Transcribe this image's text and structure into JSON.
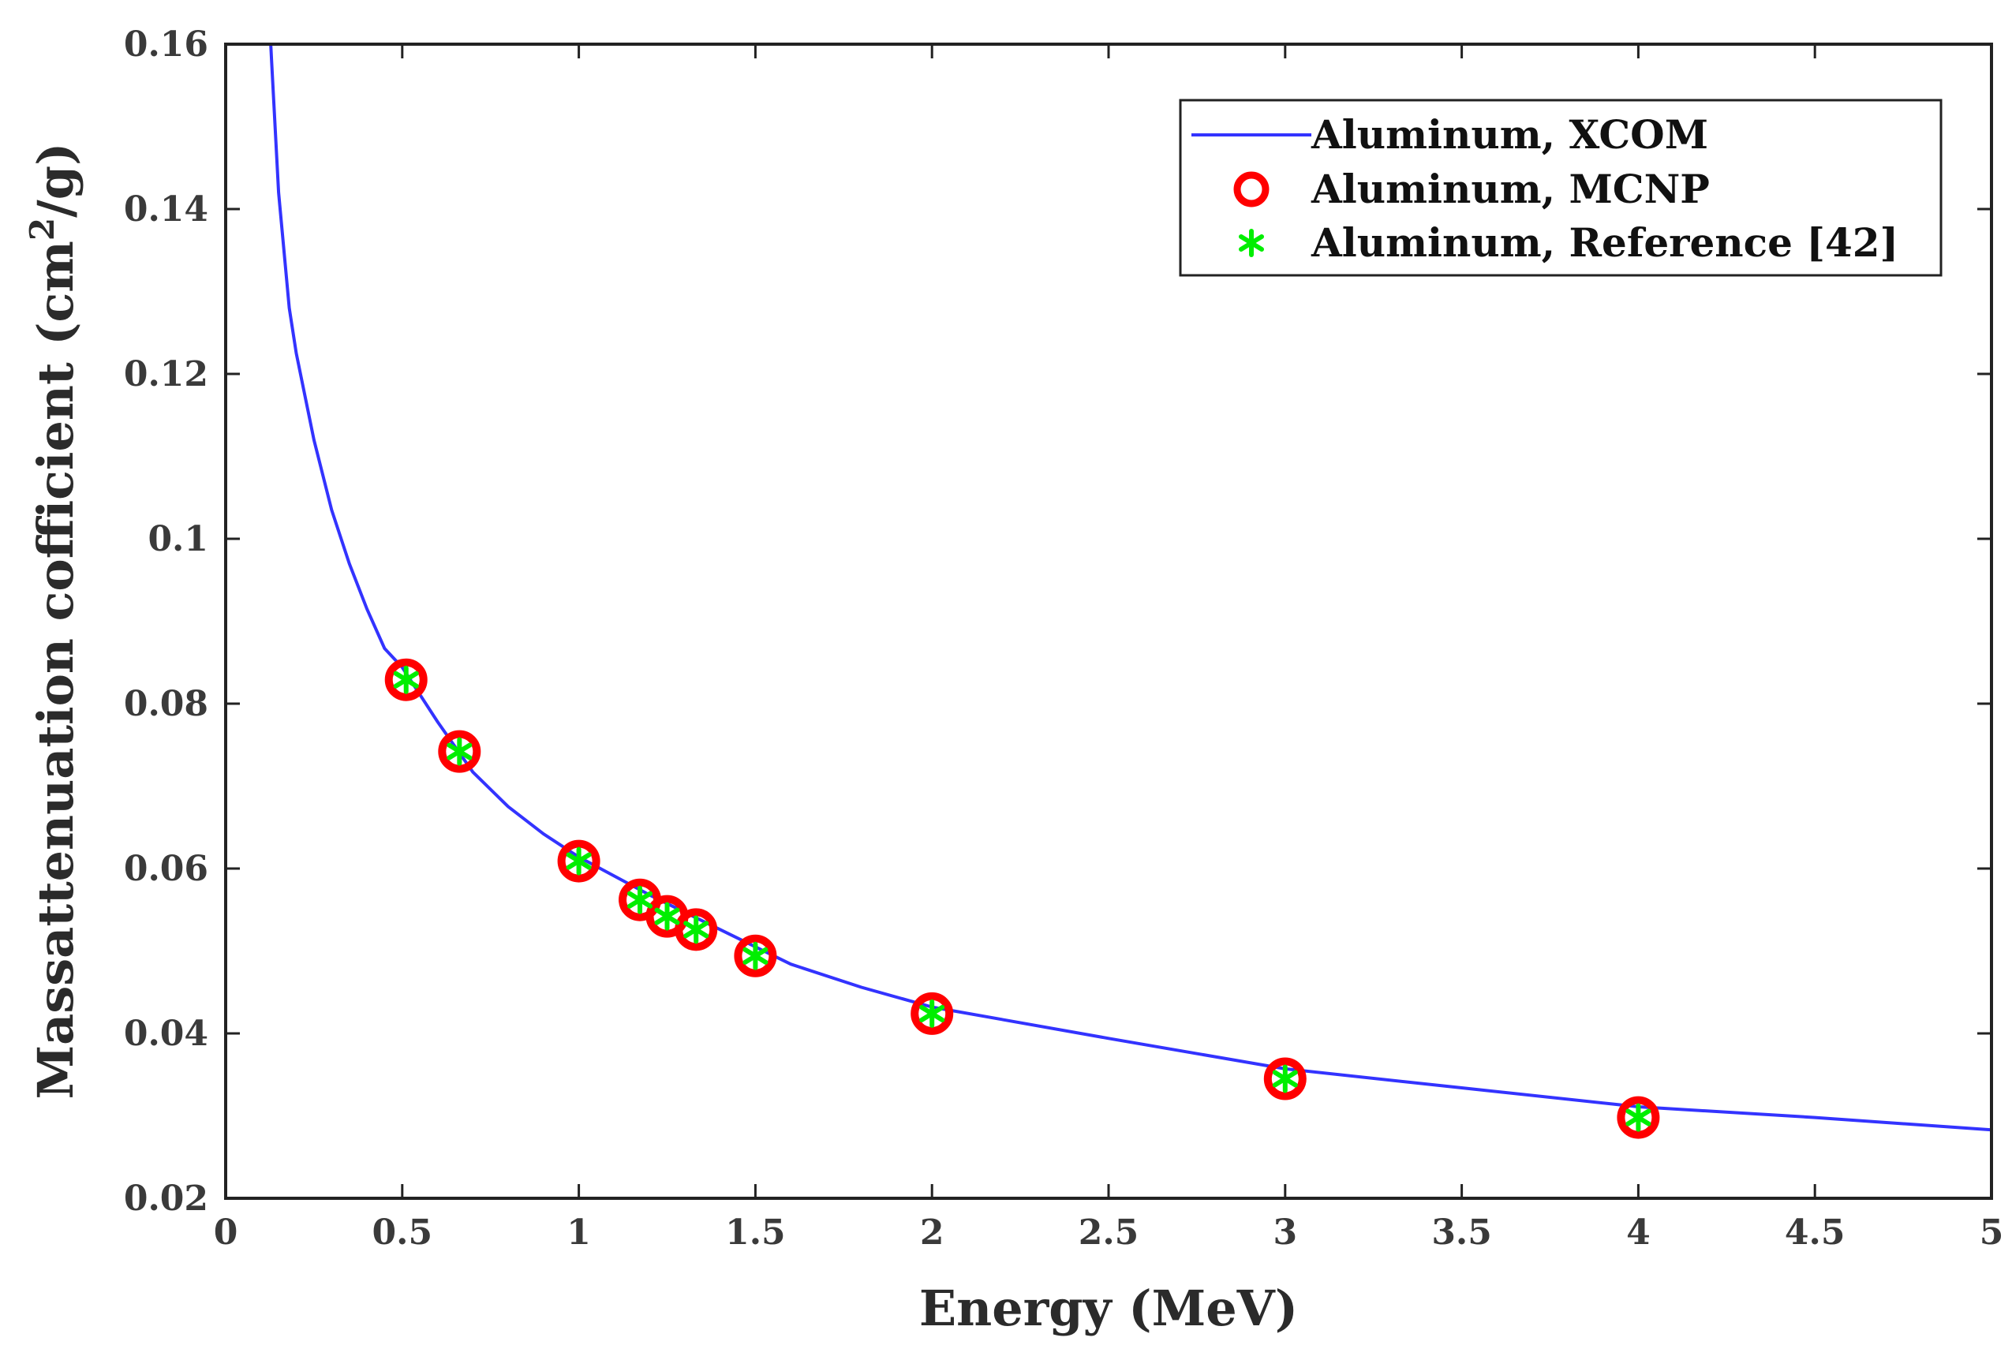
{
  "chart_data": {
    "type": "line",
    "xlabel": "Energy (MeV)",
    "ylabel_main": "Massattenuation cofficient (cm",
    "ylabel_sup": "2",
    "ylabel_end": "/g)",
    "xlim": [
      0,
      5
    ],
    "ylim": [
      0.02,
      0.16
    ],
    "x_ticks": [
      0,
      0.5,
      1,
      1.5,
      2,
      2.5,
      3,
      3.5,
      4,
      4.5,
      5
    ],
    "x_tick_labels": [
      "0",
      "0.5",
      "1",
      "1.5",
      "2",
      "2.5",
      "3",
      "3.5",
      "4",
      "4.5",
      "5"
    ],
    "y_ticks": [
      0.02,
      0.04,
      0.06,
      0.08,
      0.1,
      0.12,
      0.14,
      0.16
    ],
    "y_tick_labels": [
      "0.02",
      "0.04",
      "0.06",
      "0.08",
      "0.1",
      "0.12",
      "0.14",
      "0.16"
    ],
    "grid": false,
    "legend_position": "top-right",
    "series": [
      {
        "name": "Aluminum, XCOM",
        "kind": "line",
        "color": "#3333ff",
        "x": [
          0.11,
          0.13,
          0.15,
          0.18,
          0.2,
          0.25,
          0.3,
          0.35,
          0.4,
          0.45,
          0.5,
          0.6,
          0.7,
          0.8,
          0.9,
          1.0,
          1.2,
          1.4,
          1.6,
          1.8,
          2.0,
          2.5,
          3.0,
          3.5,
          4.0,
          4.5,
          5.0
        ],
        "y": [
          0.175,
          0.158,
          0.142,
          0.128,
          0.1225,
          0.112,
          0.1035,
          0.097,
          0.0915,
          0.0867,
          0.0844,
          0.0778,
          0.0717,
          0.0675,
          0.0642,
          0.0614,
          0.0568,
          0.0526,
          0.0484,
          0.0456,
          0.0432,
          0.0394,
          0.0357,
          0.0334,
          0.0311,
          0.0298,
          0.0283
        ]
      },
      {
        "name": "Aluminum, MCNP",
        "kind": "scatter",
        "marker": "circle",
        "color": "#ff0000",
        "x": [
          0.511,
          0.662,
          1.0,
          1.173,
          1.25,
          1.332,
          1.5,
          2.0,
          3.0,
          4.0
        ],
        "y": [
          0.0829,
          0.0742,
          0.0609,
          0.0562,
          0.0542,
          0.0526,
          0.0494,
          0.0424,
          0.0345,
          0.0298
        ]
      },
      {
        "name": "Aluminum, Reference [42]",
        "kind": "scatter",
        "marker": "asterisk",
        "color": "#00ee00",
        "x": [
          0.511,
          0.662,
          1.0,
          1.173,
          1.25,
          1.332,
          1.5,
          2.0,
          3.0,
          4.0
        ],
        "y": [
          0.0829,
          0.0742,
          0.0609,
          0.0562,
          0.0542,
          0.0526,
          0.0494,
          0.0424,
          0.0345,
          0.0298
        ]
      }
    ]
  }
}
